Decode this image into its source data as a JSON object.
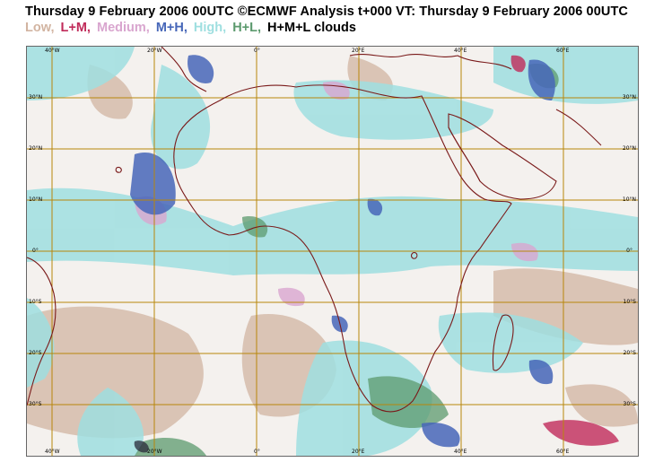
{
  "title": "Thursday 9 February 2006 00UTC ©ECMWF Analysis t+000 VT: Thursday 9 February 2006 00UTC",
  "legend": [
    {
      "label": "Low,",
      "color": "#d2b4a1"
    },
    {
      "label": "L+M,",
      "color": "#c02b5a"
    },
    {
      "label": "Medium,",
      "color": "#d9a6cf"
    },
    {
      "label": "M+H,",
      "color": "#4666b8"
    },
    {
      "label": "High,",
      "color": "#9fdfe0"
    },
    {
      "label": "H+L,",
      "color": "#5c9a6e"
    },
    {
      "label": "H+M+L clouds",
      "color": "#000000"
    }
  ],
  "longitude_labels": [
    "40°W",
    "20°W",
    "0°",
    "20°E",
    "40°E",
    "60°E"
  ],
  "latitude_labels": [
    "30°N",
    "20°N",
    "10°N",
    "0°",
    "10°S",
    "20°S",
    "30°S"
  ],
  "colors": {
    "grid": "#b8860b",
    "coast": "#7a1a1a",
    "background": "#f4f1ee"
  }
}
